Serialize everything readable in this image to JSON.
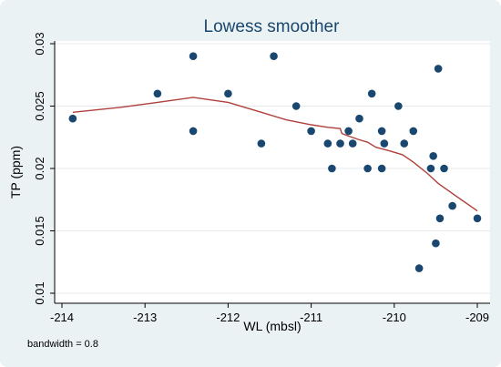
{
  "chart_data": {
    "type": "scatter",
    "title": "Lowess smoother",
    "xlabel": "WL (mbsl)",
    "ylabel": "TP (ppm)",
    "note": "bandwidth = 0.8",
    "xlim": [
      -214,
      -209
    ],
    "ylim": [
      0.01,
      0.03
    ],
    "xticks": [
      -214,
      -213,
      -212,
      -211,
      -210,
      -209
    ],
    "yticks": [
      0.01,
      0.015,
      0.02,
      0.025,
      0.03
    ],
    "xtick_labels": [
      "-214",
      "-213",
      "-212",
      "-211",
      "-210",
      "-209"
    ],
    "ytick_labels": [
      "0.01",
      "0.015",
      "0.02",
      "0.025",
      "0.03"
    ],
    "grid": true,
    "colors": {
      "points": "#1a476f",
      "smoother": "#b0403c",
      "plot_bg": "#ffffff",
      "outer_bg": "#eaf2f3",
      "title": "#1a476f"
    },
    "series": [
      {
        "type": "scatter",
        "points": [
          [
            -213.87,
            0.024
          ],
          [
            -212.85,
            0.026
          ],
          [
            -212.42,
            0.029
          ],
          [
            -212.42,
            0.023
          ],
          [
            -212.0,
            0.026
          ],
          [
            -211.6,
            0.022
          ],
          [
            -211.45,
            0.029
          ],
          [
            -211.18,
            0.025
          ],
          [
            -211.0,
            0.023
          ],
          [
            -210.8,
            0.022
          ],
          [
            -210.75,
            0.02
          ],
          [
            -210.65,
            0.022
          ],
          [
            -210.55,
            0.023
          ],
          [
            -210.5,
            0.022
          ],
          [
            -210.42,
            0.024
          ],
          [
            -210.32,
            0.02
          ],
          [
            -210.27,
            0.026
          ],
          [
            -210.15,
            0.023
          ],
          [
            -210.15,
            0.02
          ],
          [
            -210.12,
            0.022
          ],
          [
            -209.95,
            0.025
          ],
          [
            -209.88,
            0.022
          ],
          [
            -209.77,
            0.023
          ],
          [
            -209.7,
            0.012
          ],
          [
            -209.56,
            0.02
          ],
          [
            -209.53,
            0.021
          ],
          [
            -209.5,
            0.014
          ],
          [
            -209.47,
            0.028
          ],
          [
            -209.45,
            0.016
          ],
          [
            -209.4,
            0.02
          ],
          [
            -209.3,
            0.017
          ],
          [
            -209.0,
            0.016
          ]
        ]
      },
      {
        "type": "line",
        "points": [
          [
            -213.87,
            0.0245
          ],
          [
            -213.3,
            0.0249
          ],
          [
            -212.85,
            0.0253
          ],
          [
            -212.42,
            0.0257
          ],
          [
            -212.0,
            0.0253
          ],
          [
            -211.6,
            0.0245
          ],
          [
            -211.3,
            0.0239
          ],
          [
            -211.0,
            0.0235
          ],
          [
            -210.8,
            0.0233
          ],
          [
            -210.65,
            0.0232
          ],
          [
            -210.63,
            0.0228
          ],
          [
            -210.55,
            0.0226
          ],
          [
            -210.42,
            0.0223
          ],
          [
            -210.32,
            0.0221
          ],
          [
            -210.22,
            0.0217
          ],
          [
            -210.05,
            0.0214
          ],
          [
            -209.9,
            0.0211
          ],
          [
            -209.77,
            0.0205
          ],
          [
            -209.6,
            0.0196
          ],
          [
            -209.47,
            0.0188
          ],
          [
            -209.3,
            0.018
          ],
          [
            -209.0,
            0.0166
          ]
        ]
      }
    ]
  }
}
